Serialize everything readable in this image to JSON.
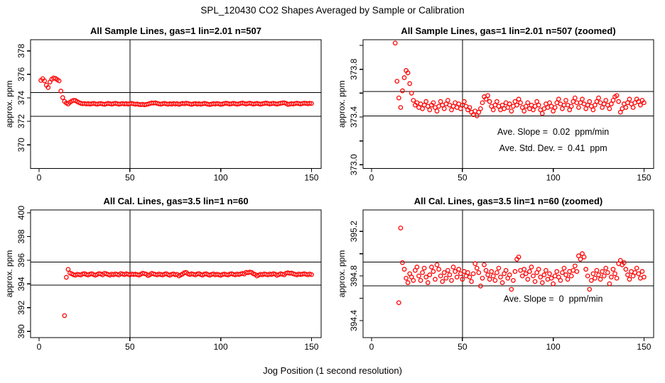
{
  "figure_title": "SPL_120430  CO2 Shapes Averaged by Sample or Calibration",
  "point_color": "#ff0000",
  "axis_color": "#000000",
  "chart_data": {
    "type": "scatter",
    "xlabel": "Jog Position (1 second resolution)",
    "legend": "none",
    "grid": "off",
    "series": {
      "sample": {
        "name": "All Sample Lines average (gas=1 lin=2.01 n=507)",
        "x": [
          1,
          2,
          3,
          4,
          5,
          6,
          7,
          8,
          9,
          10,
          11,
          12,
          13,
          14,
          15,
          16,
          17,
          18,
          19,
          20,
          21,
          22,
          23,
          24,
          25,
          26,
          27,
          28,
          29,
          30,
          31,
          32,
          33,
          34,
          35,
          36,
          37,
          38,
          39,
          40,
          41,
          42,
          43,
          44,
          45,
          46,
          47,
          48,
          49,
          50,
          51,
          52,
          53,
          54,
          55,
          56,
          57,
          58,
          59,
          60,
          61,
          62,
          63,
          64,
          65,
          66,
          67,
          68,
          69,
          70,
          71,
          72,
          73,
          74,
          75,
          76,
          77,
          78,
          79,
          80,
          81,
          82,
          83,
          84,
          85,
          86,
          87,
          88,
          89,
          90,
          91,
          92,
          93,
          94,
          95,
          96,
          97,
          98,
          99,
          100,
          101,
          102,
          103,
          104,
          105,
          106,
          107,
          108,
          109,
          110,
          111,
          112,
          113,
          114,
          115,
          116,
          117,
          118,
          119,
          120,
          121,
          122,
          123,
          124,
          125,
          126,
          127,
          128,
          129,
          130,
          131,
          132,
          133,
          134,
          135,
          136,
          137,
          138,
          139,
          140,
          141,
          142,
          143,
          144,
          145,
          146,
          147,
          148,
          149,
          150
        ],
        "y": [
          375.49,
          375.63,
          375.45,
          375.08,
          374.88,
          375.35,
          375.59,
          375.69,
          375.65,
          375.55,
          375.45,
          374.58,
          374.02,
          373.7,
          373.56,
          373.48,
          373.62,
          373.73,
          373.79,
          373.77,
          373.68,
          373.6,
          373.54,
          373.5,
          373.52,
          373.48,
          373.51,
          373.47,
          373.5,
          373.53,
          373.49,
          373.46,
          373.5,
          373.52,
          373.48,
          373.45,
          373.49,
          373.53,
          373.5,
          373.47,
          373.51,
          373.54,
          373.5,
          373.46,
          373.49,
          373.52,
          373.48,
          373.51,
          373.47,
          373.5,
          373.53,
          373.49,
          373.46,
          373.48,
          373.44,
          373.42,
          373.45,
          373.41,
          373.44,
          373.47,
          373.52,
          373.57,
          373.55,
          373.58,
          373.53,
          373.49,
          373.46,
          373.5,
          373.53,
          373.49,
          373.46,
          373.5,
          373.47,
          373.52,
          373.48,
          373.51,
          373.45,
          373.49,
          373.53,
          373.5,
          373.55,
          373.52,
          373.48,
          373.45,
          373.49,
          373.52,
          373.47,
          373.5,
          373.46,
          373.49,
          373.53,
          373.5,
          373.46,
          373.43,
          373.47,
          373.51,
          373.48,
          373.52,
          373.49,
          373.45,
          373.48,
          373.52,
          373.55,
          373.51,
          373.47,
          373.5,
          373.54,
          373.5,
          373.46,
          373.49,
          373.53,
          373.56,
          373.52,
          373.48,
          373.52,
          373.55,
          373.51,
          373.47,
          373.5,
          373.53,
          373.49,
          373.46,
          373.5,
          373.53,
          373.56,
          373.52,
          373.48,
          373.51,
          373.54,
          373.5,
          373.47,
          373.51,
          373.54,
          373.57,
          373.58,
          373.53,
          373.44,
          373.47,
          373.51,
          373.48,
          373.52,
          373.55,
          373.51,
          373.48,
          373.52,
          373.55,
          373.53,
          373.5,
          373.54,
          373.52
        ]
      },
      "cal": {
        "name": "All Cal. Lines average (gas=3.5 lin=1 n=60)",
        "x": [
          14,
          15,
          16,
          17,
          18,
          19,
          20,
          21,
          22,
          23,
          24,
          25,
          26,
          27,
          28,
          29,
          30,
          31,
          32,
          33,
          34,
          35,
          36,
          37,
          38,
          39,
          40,
          41,
          42,
          43,
          44,
          45,
          46,
          47,
          48,
          49,
          50,
          51,
          52,
          53,
          54,
          55,
          56,
          57,
          58,
          59,
          60,
          61,
          62,
          63,
          64,
          65,
          66,
          67,
          68,
          69,
          70,
          71,
          72,
          73,
          74,
          75,
          76,
          77,
          78,
          79,
          80,
          81,
          82,
          83,
          84,
          85,
          86,
          87,
          88,
          89,
          90,
          91,
          92,
          93,
          94,
          95,
          96,
          97,
          98,
          99,
          100,
          101,
          102,
          103,
          104,
          105,
          106,
          107,
          108,
          109,
          110,
          111,
          112,
          113,
          114,
          115,
          116,
          117,
          118,
          119,
          120,
          121,
          122,
          123,
          124,
          125,
          126,
          127,
          128,
          129,
          130,
          131,
          132,
          133,
          134,
          135,
          136,
          137,
          138,
          139,
          140,
          141,
          142,
          143,
          144,
          145,
          146,
          147,
          148,
          149,
          150
        ],
        "y": [
          391.33,
          394.56,
          395.23,
          394.92,
          394.86,
          394.78,
          394.74,
          394.82,
          394.79,
          394.76,
          394.85,
          394.88,
          394.8,
          394.76,
          394.83,
          394.87,
          394.79,
          394.74,
          394.81,
          394.88,
          394.84,
          394.77,
          394.9,
          394.86,
          394.8,
          394.75,
          394.83,
          394.78,
          394.85,
          394.81,
          394.76,
          394.88,
          394.84,
          394.79,
          394.86,
          394.82,
          394.77,
          394.84,
          394.8,
          394.83,
          394.79,
          394.75,
          394.82,
          394.91,
          394.87,
          394.83,
          394.71,
          394.78,
          394.9,
          394.85,
          394.81,
          394.77,
          394.84,
          394.8,
          394.76,
          394.83,
          394.87,
          394.79,
          394.74,
          394.82,
          394.85,
          394.78,
          394.81,
          394.68,
          394.76,
          394.84,
          394.95,
          394.97,
          394.85,
          394.8,
          394.86,
          394.82,
          394.77,
          394.84,
          394.88,
          394.8,
          394.75,
          394.83,
          394.86,
          394.79,
          394.74,
          394.81,
          394.85,
          394.77,
          394.82,
          394.78,
          394.73,
          394.8,
          394.84,
          394.79,
          394.76,
          394.83,
          394.87,
          394.81,
          394.77,
          394.84,
          394.8,
          394.85,
          394.89,
          394.84,
          394.98,
          394.95,
          395.0,
          394.97,
          394.86,
          394.8,
          394.68,
          394.76,
          394.82,
          394.78,
          394.85,
          394.81,
          394.77,
          394.84,
          394.8,
          394.87,
          394.83,
          394.73,
          394.79,
          394.86,
          394.82,
          394.78,
          394.91,
          394.94,
          394.9,
          394.92,
          394.86,
          394.81,
          394.77,
          394.84,
          394.8,
          394.83,
          394.87,
          394.82,
          394.78,
          394.84,
          394.79
        ]
      }
    },
    "panels": [
      {
        "id": "sample-full",
        "title": "All Sample Lines, gas=1 lin=2.01 n=507",
        "series": "sample",
        "ylabel": "approx. ppm",
        "xlim": [
          -4.7,
          155.3
        ],
        "ylim": [
          367.99,
          378.95
        ],
        "xticks": [
          0,
          50,
          100,
          150
        ],
        "yticks": [
          370,
          372,
          374,
          376,
          378
        ],
        "ytick_labels": [
          "370",
          "372",
          "374",
          "376",
          "378"
        ],
        "hlines": [
          374.45,
          372.42
        ],
        "vline": 50,
        "annotations": []
      },
      {
        "id": "sample-zoom",
        "title": "All Sample Lines, gas=1 lin=2.01 n=507 (zoomed)",
        "series": "sample",
        "ylabel": "approx. ppm",
        "xlim": [
          -4.7,
          155.3
        ],
        "ylim": [
          372.969,
          374.048
        ],
        "xticks": [
          0,
          50,
          100,
          150
        ],
        "yticks": [
          373.0,
          373.2,
          373.4,
          373.6,
          373.8,
          374.0
        ],
        "ytick_labels": [
          "373.0",
          "",
          "373.4",
          "",
          "373.8",
          ""
        ],
        "hlines": [
          373.615,
          373.41
        ],
        "vline": 50,
        "annotations": [
          {
            "text": "Ave. Slope =  0.02  ppm/min",
            "x": 100,
            "y": 373.25
          },
          {
            "text": "Ave. Std. Dev. =  0.41  ppm",
            "x": 100,
            "y": 373.115
          }
        ]
      },
      {
        "id": "cal-full",
        "title": "All Cal. Lines, gas=3.5 lin=1 n=60",
        "series": "cal",
        "ylabel": "approx. ppm",
        "xlim": [
          -4.7,
          155.3
        ],
        "ylim": [
          389.48,
          400.24
        ],
        "xticks": [
          0,
          50,
          100,
          150
        ],
        "yticks": [
          390,
          392,
          394,
          396,
          398,
          400
        ],
        "ytick_labels": [
          "390",
          "392",
          "394",
          "396",
          "398",
          "400"
        ],
        "hlines": [
          395.85,
          393.9
        ],
        "vline": 50,
        "annotations": []
      },
      {
        "id": "cal-zoom",
        "title": "All Cal. Lines, gas=3.5 lin=1 n=60 (zoomed)",
        "series": "cal",
        "ylabel": "approx. ppm",
        "xlim": [
          -4.7,
          155.3
        ],
        "ylim": [
          394.247,
          395.392
        ],
        "xticks": [
          0,
          50,
          100,
          150
        ],
        "yticks": [
          394.4,
          394.6,
          394.8,
          395.0,
          395.2
        ],
        "ytick_labels": [
          "394.4",
          "",
          "394.8",
          "",
          "395.2"
        ],
        "hlines": [
          394.925,
          394.71
        ],
        "vline": 50,
        "annotations": [
          {
            "text": "Ave. Slope =  0  ppm/min",
            "x": 100,
            "y": 394.568
          }
        ]
      }
    ]
  }
}
